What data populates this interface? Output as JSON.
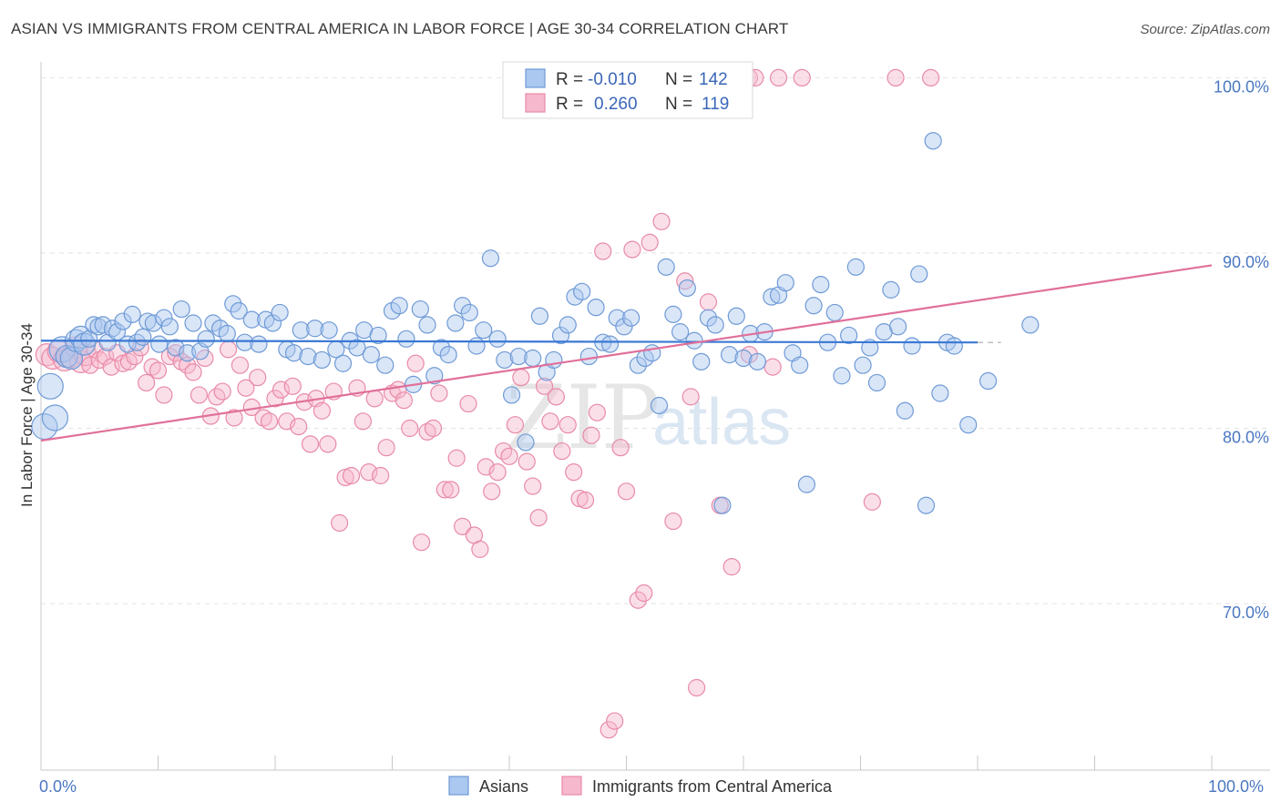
{
  "title": "ASIAN VS IMMIGRANTS FROM CENTRAL AMERICA IN LABOR FORCE | AGE 30-34 CORRELATION CHART",
  "source": "Source: ZipAtlas.com",
  "watermark": {
    "zip": "ZIP",
    "atlas": "atlas"
  },
  "colors": {
    "asian_fill": "#aac8f0",
    "asian_stroke": "#6f9ad6",
    "asian_line": "#3a78d4",
    "ca_fill": "#f6b8cc",
    "ca_stroke": "#e88aa8",
    "ca_line": "#e0709a",
    "tick_text": "#4a78c2",
    "grid": "#e2e2e2"
  },
  "legend": {
    "row1": {
      "r_label": "R =",
      "r_value": "-0.010",
      "n_label": "N =",
      "n_value": "142"
    },
    "row2": {
      "r_label": "R =",
      "r_value": "0.260",
      "n_label": "N =",
      "n_value": "119"
    }
  },
  "chart_data": {
    "type": "scatter",
    "title": "ASIAN VS IMMIGRANTS FROM CENTRAL AMERICA IN LABOR FORCE | AGE 30-34 CORRELATION CHART",
    "xlabel": "",
    "ylabel": "In Labor Force | Age 30-34",
    "xlim": [
      0,
      100
    ],
    "ylim": [
      60.5,
      100.8
    ],
    "x_tick_labels": [
      {
        "value": 0,
        "label": "0.0%"
      },
      {
        "value": 100,
        "label": "100.0%"
      }
    ],
    "y_tick_labels": [
      {
        "value": 100,
        "label": "100.0%"
      },
      {
        "value": 90,
        "label": "90.0%"
      },
      {
        "value": 80,
        "label": "80.0%"
      },
      {
        "value": 70,
        "label": "70.0%"
      }
    ],
    "grid": true,
    "legend_position": "top-center",
    "series": [
      {
        "name": "Asians",
        "trend": {
          "x": [
            0,
            80
          ],
          "y": [
            85.0,
            84.9
          ],
          "dashed_to": 82
        },
        "points": [
          [
            0.3,
            80.1
          ],
          [
            0.8,
            82.4
          ],
          [
            1.2,
            80.6
          ],
          [
            1.8,
            84.5
          ],
          [
            2.2,
            84.1
          ],
          [
            2.6,
            84.0
          ],
          [
            3.0,
            85.0
          ],
          [
            3.4,
            85.2
          ],
          [
            3.7,
            84.8
          ],
          [
            4.1,
            85.1
          ],
          [
            4.5,
            85.9
          ],
          [
            4.9,
            85.8
          ],
          [
            5.3,
            85.9
          ],
          [
            5.7,
            84.9
          ],
          [
            6.1,
            85.7
          ],
          [
            6.5,
            85.5
          ],
          [
            7.0,
            86.1
          ],
          [
            7.4,
            84.8
          ],
          [
            7.8,
            86.5
          ],
          [
            8.2,
            84.9
          ],
          [
            8.7,
            85.2
          ],
          [
            9.1,
            86.1
          ],
          [
            9.6,
            86.0
          ],
          [
            10.1,
            84.8
          ],
          [
            10.5,
            86.3
          ],
          [
            11.0,
            85.8
          ],
          [
            11.5,
            84.6
          ],
          [
            12.0,
            86.8
          ],
          [
            12.5,
            84.3
          ],
          [
            13.0,
            86.0
          ],
          [
            13.6,
            84.4
          ],
          [
            14.1,
            85.1
          ],
          [
            14.7,
            86.0
          ],
          [
            15.3,
            85.7
          ],
          [
            15.9,
            85.4
          ],
          [
            16.4,
            87.1
          ],
          [
            16.9,
            86.7
          ],
          [
            17.4,
            84.9
          ],
          [
            18.0,
            86.2
          ],
          [
            18.6,
            84.8
          ],
          [
            19.2,
            86.2
          ],
          [
            19.8,
            86.0
          ],
          [
            20.4,
            86.6
          ],
          [
            21.0,
            84.5
          ],
          [
            21.6,
            84.3
          ],
          [
            22.2,
            85.6
          ],
          [
            22.8,
            84.1
          ],
          [
            23.4,
            85.7
          ],
          [
            24.0,
            83.9
          ],
          [
            24.6,
            85.6
          ],
          [
            25.2,
            84.5
          ],
          [
            25.8,
            83.7
          ],
          [
            26.4,
            85.0
          ],
          [
            27.0,
            84.6
          ],
          [
            27.6,
            85.6
          ],
          [
            28.2,
            84.2
          ],
          [
            28.8,
            85.3
          ],
          [
            29.4,
            83.6
          ],
          [
            30.0,
            86.7
          ],
          [
            30.6,
            87.0
          ],
          [
            31.2,
            85.1
          ],
          [
            31.8,
            82.5
          ],
          [
            32.4,
            86.8
          ],
          [
            33.0,
            85.9
          ],
          [
            33.6,
            83.0
          ],
          [
            34.2,
            84.6
          ],
          [
            34.8,
            84.2
          ],
          [
            35.4,
            86.0
          ],
          [
            36.0,
            87.0
          ],
          [
            36.6,
            86.6
          ],
          [
            37.2,
            84.7
          ],
          [
            37.8,
            85.6
          ],
          [
            38.4,
            89.7
          ],
          [
            39.0,
            85.1
          ],
          [
            39.6,
            83.9
          ],
          [
            40.2,
            81.9
          ],
          [
            40.8,
            84.1
          ],
          [
            41.4,
            79.2
          ],
          [
            42.0,
            84.0
          ],
          [
            42.6,
            86.4
          ],
          [
            43.2,
            83.2
          ],
          [
            43.8,
            83.9
          ],
          [
            44.4,
            85.3
          ],
          [
            45.0,
            85.9
          ],
          [
            45.6,
            87.5
          ],
          [
            46.2,
            87.8
          ],
          [
            46.8,
            84.1
          ],
          [
            47.4,
            86.9
          ],
          [
            48.0,
            84.9
          ],
          [
            48.6,
            84.8
          ],
          [
            49.2,
            86.3
          ],
          [
            49.8,
            85.8
          ],
          [
            50.4,
            86.3
          ],
          [
            51.0,
            83.6
          ],
          [
            51.6,
            84.0
          ],
          [
            52.2,
            84.3
          ],
          [
            52.8,
            81.3
          ],
          [
            53.4,
            89.2
          ],
          [
            54.0,
            86.5
          ],
          [
            54.6,
            85.5
          ],
          [
            55.2,
            88.0
          ],
          [
            55.8,
            85.0
          ],
          [
            56.4,
            83.8
          ],
          [
            57.0,
            86.3
          ],
          [
            57.6,
            85.9
          ],
          [
            58.2,
            75.6
          ],
          [
            58.8,
            84.2
          ],
          [
            59.4,
            86.4
          ],
          [
            60.0,
            84.0
          ],
          [
            60.6,
            85.4
          ],
          [
            61.2,
            83.8
          ],
          [
            61.8,
            85.5
          ],
          [
            62.4,
            87.5
          ],
          [
            63.0,
            87.6
          ],
          [
            63.6,
            88.3
          ],
          [
            64.2,
            84.3
          ],
          [
            64.8,
            83.6
          ],
          [
            65.4,
            76.8
          ],
          [
            66.0,
            87.0
          ],
          [
            66.6,
            88.2
          ],
          [
            67.2,
            84.9
          ],
          [
            67.8,
            86.6
          ],
          [
            68.4,
            83.0
          ],
          [
            69.0,
            85.3
          ],
          [
            69.6,
            89.2
          ],
          [
            70.2,
            83.6
          ],
          [
            70.8,
            84.6
          ],
          [
            71.4,
            82.6
          ],
          [
            72.0,
            85.5
          ],
          [
            72.6,
            87.9
          ],
          [
            73.2,
            85.8
          ],
          [
            73.8,
            81.0
          ],
          [
            74.4,
            84.7
          ],
          [
            75.0,
            88.8
          ],
          [
            75.6,
            75.6
          ],
          [
            76.2,
            96.4
          ],
          [
            76.8,
            82.0
          ],
          [
            77.4,
            84.9
          ],
          [
            78.0,
            84.7
          ],
          [
            79.2,
            80.2
          ],
          [
            80.9,
            82.7
          ],
          [
            84.5,
            85.9
          ]
        ]
      },
      {
        "name": "Immigrants from Central America",
        "trend": {
          "x": [
            0,
            100
          ],
          "y": [
            79.3,
            89.3
          ]
        },
        "points": [
          [
            0.5,
            84.2
          ],
          [
            1.0,
            84.0
          ],
          [
            1.5,
            84.4
          ],
          [
            2.0,
            83.9
          ],
          [
            2.5,
            84.1
          ],
          [
            3.0,
            84.6
          ],
          [
            3.4,
            83.8
          ],
          [
            3.8,
            84.2
          ],
          [
            4.2,
            83.6
          ],
          [
            4.6,
            84.5
          ],
          [
            5.0,
            83.9
          ],
          [
            5.5,
            84.1
          ],
          [
            6.0,
            83.5
          ],
          [
            6.5,
            84.3
          ],
          [
            7.0,
            83.7
          ],
          [
            7.5,
            83.8
          ],
          [
            8.0,
            84.1
          ],
          [
            8.5,
            84.6
          ],
          [
            9.0,
            82.6
          ],
          [
            9.5,
            83.5
          ],
          [
            10.0,
            83.3
          ],
          [
            10.5,
            81.9
          ],
          [
            11.0,
            84.1
          ],
          [
            11.5,
            84.3
          ],
          [
            12.0,
            83.8
          ],
          [
            12.5,
            83.6
          ],
          [
            13.0,
            83.2
          ],
          [
            13.5,
            81.9
          ],
          [
            14.0,
            84.0
          ],
          [
            14.5,
            80.7
          ],
          [
            15.0,
            81.8
          ],
          [
            15.5,
            82.1
          ],
          [
            16.0,
            84.5
          ],
          [
            16.5,
            80.6
          ],
          [
            17.0,
            83.6
          ],
          [
            17.5,
            82.3
          ],
          [
            18.0,
            81.2
          ],
          [
            18.5,
            82.9
          ],
          [
            19.0,
            80.6
          ],
          [
            19.5,
            80.4
          ],
          [
            20.0,
            81.7
          ],
          [
            20.5,
            82.2
          ],
          [
            21.0,
            80.4
          ],
          [
            21.5,
            82.4
          ],
          [
            22.0,
            80.1
          ],
          [
            22.5,
            81.5
          ],
          [
            23.0,
            79.1
          ],
          [
            23.5,
            81.7
          ],
          [
            24.0,
            81.0
          ],
          [
            24.5,
            79.1
          ],
          [
            25.0,
            82.1
          ],
          [
            25.5,
            74.6
          ],
          [
            26.0,
            77.2
          ],
          [
            26.5,
            77.3
          ],
          [
            27.0,
            82.3
          ],
          [
            27.5,
            80.4
          ],
          [
            28.0,
            77.5
          ],
          [
            28.5,
            81.7
          ],
          [
            29.0,
            77.3
          ],
          [
            29.5,
            78.9
          ],
          [
            30.0,
            82.0
          ],
          [
            30.5,
            82.2
          ],
          [
            31.0,
            81.6
          ],
          [
            31.5,
            80.0
          ],
          [
            32.0,
            83.7
          ],
          [
            32.5,
            73.5
          ],
          [
            33.0,
            79.8
          ],
          [
            33.5,
            80.0
          ],
          [
            34.0,
            82.0
          ],
          [
            34.5,
            76.5
          ],
          [
            35.0,
            76.5
          ],
          [
            35.5,
            78.3
          ],
          [
            36.0,
            74.4
          ],
          [
            36.5,
            81.4
          ],
          [
            37.0,
            73.9
          ],
          [
            37.5,
            73.1
          ],
          [
            38.0,
            77.8
          ],
          [
            38.5,
            76.4
          ],
          [
            39.0,
            77.5
          ],
          [
            39.5,
            78.7
          ],
          [
            40.0,
            78.4
          ],
          [
            40.5,
            80.2
          ],
          [
            41.0,
            82.9
          ],
          [
            41.5,
            78.1
          ],
          [
            42.0,
            76.7
          ],
          [
            42.5,
            74.9
          ],
          [
            43.0,
            82.4
          ],
          [
            43.5,
            80.4
          ],
          [
            44.0,
            81.8
          ],
          [
            44.5,
            78.7
          ],
          [
            45.0,
            80.2
          ],
          [
            45.5,
            77.5
          ],
          [
            46.0,
            76.0
          ],
          [
            46.5,
            75.9
          ],
          [
            47.0,
            79.6
          ],
          [
            47.5,
            80.9
          ],
          [
            48.0,
            90.1
          ],
          [
            48.5,
            62.8
          ],
          [
            49.0,
            63.3
          ],
          [
            49.5,
            78.9
          ],
          [
            50.0,
            76.4
          ],
          [
            50.5,
            90.2
          ],
          [
            51.0,
            70.2
          ],
          [
            51.5,
            70.6
          ],
          [
            52.0,
            90.6
          ],
          [
            53.0,
            91.8
          ],
          [
            54.0,
            74.7
          ],
          [
            55.0,
            88.4
          ],
          [
            56.0,
            65.2
          ],
          [
            57.0,
            87.2
          ],
          [
            58.0,
            75.6
          ],
          [
            59.0,
            72.1
          ],
          [
            60.0,
            100.0
          ],
          [
            60.5,
            100.0
          ],
          [
            61.0,
            100.0
          ],
          [
            63.0,
            100.0
          ],
          [
            65.0,
            100.0
          ],
          [
            73.0,
            100.0
          ],
          [
            76.0,
            100.0
          ],
          [
            60.5,
            84.2
          ],
          [
            55.5,
            81.8
          ],
          [
            62.5,
            83.5
          ],
          [
            71.0,
            75.8
          ]
        ]
      }
    ]
  },
  "bottom_legend": {
    "series1": "Asians",
    "series2": "Immigrants from Central America"
  }
}
